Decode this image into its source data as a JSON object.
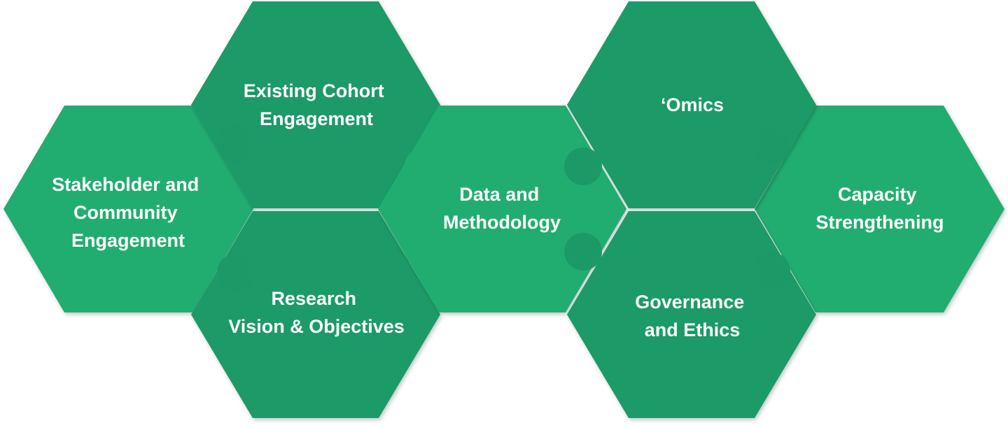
{
  "colors": {
    "light_green": "#20ad6f",
    "dark_green": "#1b9a67",
    "text": "#ffffff"
  },
  "hexagons": [
    {
      "id": "stakeholder",
      "lines": [
        "Stakeholder and",
        "Community",
        "Engagement"
      ],
      "tone": "light"
    },
    {
      "id": "cohort",
      "lines": [
        "Existing Cohort",
        "Engagement"
      ],
      "tone": "dark"
    },
    {
      "id": "research",
      "lines": [
        "Research",
        "Vision & Objectives"
      ],
      "tone": "dark"
    },
    {
      "id": "data",
      "lines": [
        "Data and",
        "Methodology"
      ],
      "tone": "light"
    },
    {
      "id": "omics",
      "lines": [
        "‘Omics"
      ],
      "tone": "dark"
    },
    {
      "id": "governance",
      "lines": [
        "Governance",
        "and Ethics"
      ],
      "tone": "dark"
    },
    {
      "id": "capacity",
      "lines": [
        "Capacity",
        "Strengthening"
      ],
      "tone": "light"
    }
  ]
}
